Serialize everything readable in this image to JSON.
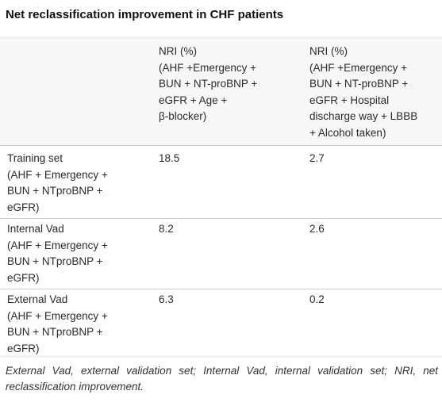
{
  "table": {
    "title": "Net reclassification improvement in CHF patients",
    "headers": {
      "row_label": "",
      "col1": [
        "NRI (%)",
        "(AHF +Emergency +",
        "BUN + NT-proBNP +",
        "eGFR + Age +",
        "β-blocker)"
      ],
      "col2": [
        "NRI (%)",
        "(AHF +Emergency +",
        "BUN + NT-proBNP +",
        "eGFR + Hospital",
        "discharge way + LBBB",
        "+ Alcohol taken)"
      ]
    },
    "rows": [
      {
        "label": [
          "Training set",
          "(AHF + Emergency +",
          "BUN + NTproBNP +",
          "eGFR)"
        ],
        "col1": "18.5",
        "col2": "2.7"
      },
      {
        "label": [
          "Internal Vad",
          "(AHF + Emergency +",
          "BUN + NTproBNP +",
          "eGFR)"
        ],
        "col1": "8.2",
        "col2": "2.6"
      },
      {
        "label": [
          "External Vad",
          "(AHF + Emergency +",
          "BUN + NTproBNP +",
          "eGFR)"
        ],
        "col1": "6.3",
        "col2": "0.2"
      }
    ],
    "footnote": "External Vad, external validation set; Internal Vad, internal validation set; NRI, net reclassification improvement."
  }
}
